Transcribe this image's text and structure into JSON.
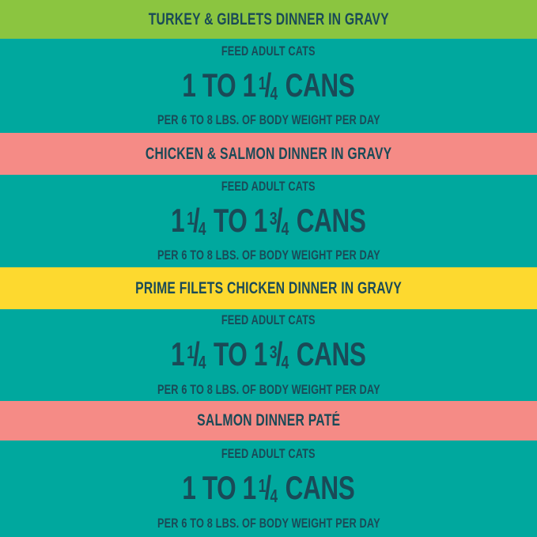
{
  "colors": {
    "green": "#8BC540",
    "teal": "#00A89E",
    "salmon": "#F58B86",
    "yellow": "#FDD92F",
    "text_dark": "#1A4A57"
  },
  "sections": [
    {
      "id": "turkey-giblets",
      "title": "TURKEY & GIBLETS DINNER IN GRAVY",
      "band_color": "#8BC540",
      "feed_label": "FEED ADULT CATS",
      "amount_text": "1 TO 1¼ CANS",
      "amount_parts": [
        {
          "t": "1 TO 1"
        },
        {
          "n": "1",
          "d": "4"
        },
        {
          "t": " CANS"
        }
      ],
      "per_label": "PER 6 TO 8 LBS. OF BODY WEIGHT PER DAY"
    },
    {
      "id": "chicken-salmon",
      "title": "CHICKEN & SALMON DINNER IN GRAVY",
      "band_color": "#F58B86",
      "feed_label": "FEED ADULT CATS",
      "amount_text": "1¼ TO 1¾ CANS",
      "amount_parts": [
        {
          "t": "1"
        },
        {
          "n": "1",
          "d": "4"
        },
        {
          "t": " TO 1"
        },
        {
          "n": "3",
          "d": "4"
        },
        {
          "t": " CANS"
        }
      ],
      "per_label": "PER 6 TO 8 LBS. OF BODY WEIGHT PER DAY"
    },
    {
      "id": "prime-filets-chicken",
      "title": "PRIME FILETS CHICKEN DINNER IN GRAVY",
      "band_color": "#FDD92F",
      "feed_label": "FEED ADULT CATS",
      "amount_text": "1¼ TO 1¾ CANS",
      "amount_parts": [
        {
          "t": "1"
        },
        {
          "n": "1",
          "d": "4"
        },
        {
          "t": " TO 1"
        },
        {
          "n": "3",
          "d": "4"
        },
        {
          "t": " CANS"
        }
      ],
      "per_label": "PER 6 TO 8 LBS. OF BODY WEIGHT PER DAY"
    },
    {
      "id": "salmon-pate",
      "title": "SALMON DINNER PATÉ",
      "band_color": "#F58B86",
      "feed_label": "FEED ADULT CATS",
      "amount_text": "1 TO 1¼ CANS",
      "amount_parts": [
        {
          "t": "1 TO 1"
        },
        {
          "n": "1",
          "d": "4"
        },
        {
          "t": " CANS"
        }
      ],
      "per_label": "PER 6 TO 8 LBS. OF BODY WEIGHT PER DAY"
    }
  ]
}
